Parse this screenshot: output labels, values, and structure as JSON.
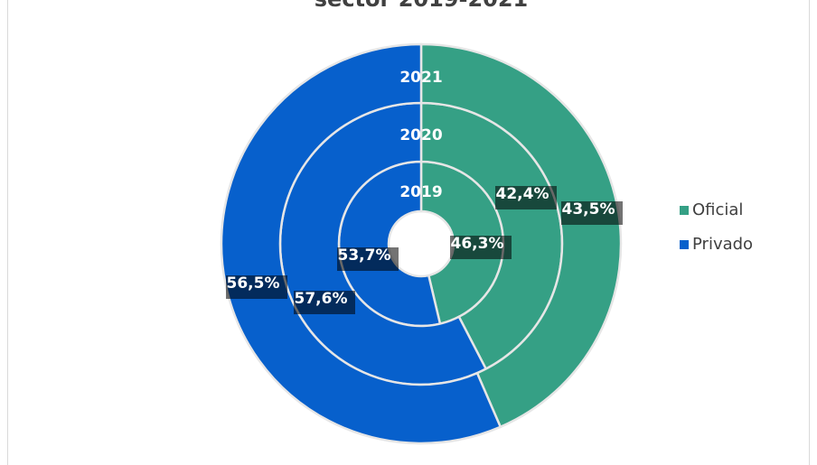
{
  "chart_data": {
    "type": "donut",
    "title": "sector 2019-2021",
    "categories": [
      "2019",
      "2020",
      "2021"
    ],
    "series": [
      {
        "name": "Oficial",
        "color": "#35a085",
        "values": [
          46.3,
          42.4,
          43.5
        ],
        "value_labels": [
          "46,3%",
          "42,4%",
          "43,5%"
        ]
      },
      {
        "name": "Privado",
        "color": "#0760cc",
        "values": [
          53.7,
          57.6,
          56.5
        ],
        "value_labels": [
          "53,7%",
          "57,6%",
          "56,5%"
        ]
      }
    ],
    "legend": "right"
  }
}
